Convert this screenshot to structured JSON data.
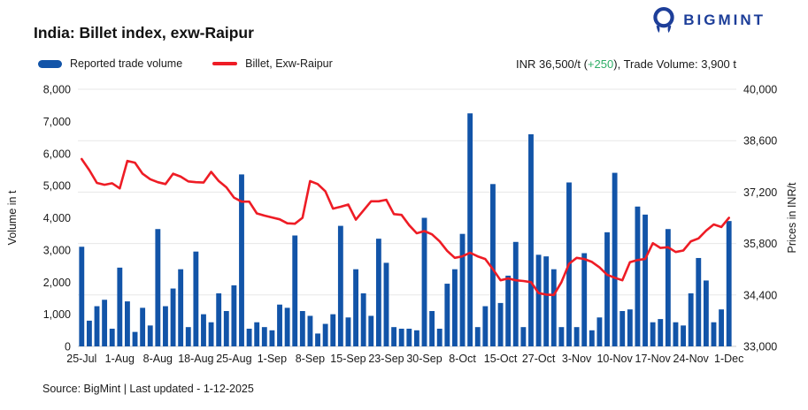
{
  "title": "India: Billet index, exw-Raipur",
  "logo": {
    "text": "BIGMINT",
    "color": "#1d3e99"
  },
  "legend": {
    "volume_label": "Reported trade volume",
    "price_label": "Billet, Exw-Raipur"
  },
  "summary": {
    "prefix": "INR 36,500/t (",
    "change": "+250",
    "suffix": "), Trade Volume: 3,900 t",
    "change_color": "#2eae66"
  },
  "source": "Source: BigMint | Last updated - 1-12-2025",
  "colors": {
    "bar": "#1254a8",
    "line": "#ee1c25",
    "grid": "#e7e7e7",
    "baseline": "#cccccc",
    "tick_text": "#1a1a1a"
  },
  "chart_data": {
    "type": "bar",
    "title": "India: Billet index, exw-Raipur",
    "grid": "horizontal gridlines aligned to right axis",
    "legend_position": "top-left",
    "x_tick_labels": [
      "25-Jul",
      "1-Aug",
      "8-Aug",
      "18-Aug",
      "25-Aug",
      "1-Sep",
      "8-Sep",
      "15-Sep",
      "23-Sep",
      "30-Sep",
      "8-Oct",
      "15-Oct",
      "27-Oct",
      "3-Nov",
      "10-Nov",
      "17-Nov",
      "24-Nov",
      "1-Dec"
    ],
    "x_tick_positions": [
      1,
      6,
      11,
      16,
      21,
      26,
      31,
      36,
      41,
      46,
      51,
      56,
      61,
      66,
      71,
      76,
      81,
      86
    ],
    "left_axis": {
      "title": "Volume in t",
      "min": 0,
      "max": 8000,
      "ticks": [
        "0",
        "1,000",
        "2,000",
        "3,000",
        "4,000",
        "5,000",
        "6,000",
        "7,000",
        "8,000"
      ]
    },
    "right_axis": {
      "title": "Prices in INR/t",
      "min": 33000,
      "max": 40000,
      "ticks": [
        "33,000",
        "34,400",
        "35,800",
        "37,200",
        "38,600",
        "40,000"
      ]
    },
    "series": [
      {
        "name": "Reported trade volume",
        "type": "bar",
        "axis": "left",
        "unit": "t",
        "values": [
          3100,
          800,
          1250,
          1450,
          550,
          2450,
          1400,
          450,
          1200,
          650,
          3650,
          1250,
          1800,
          2400,
          600,
          2950,
          1000,
          750,
          1650,
          1100,
          1900,
          5350,
          550,
          750,
          600,
          500,
          1300,
          1200,
          3450,
          1100,
          950,
          400,
          700,
          1000,
          3750,
          900,
          2400,
          1650,
          950,
          3350,
          2600,
          600,
          550,
          550,
          500,
          4000,
          1100,
          550,
          1950,
          2400,
          3500,
          7250,
          600,
          1250,
          5050,
          1350,
          2200,
          3250,
          600,
          6600,
          2850,
          2800,
          2400,
          600,
          5100,
          600,
          2900,
          500,
          900,
          3550,
          5400,
          1100,
          1150,
          4350,
          4100,
          750,
          850,
          3650,
          750,
          650,
          1650,
          2750,
          2050,
          750,
          1150,
          3900
        ]
      },
      {
        "name": "Billet, Exw-Raipur",
        "type": "line",
        "axis": "right",
        "unit": "INR/t",
        "values": [
          38100,
          37800,
          37450,
          37400,
          37440,
          37300,
          38050,
          38000,
          37700,
          37550,
          37470,
          37420,
          37700,
          37620,
          37490,
          37470,
          37460,
          37750,
          37500,
          37330,
          37050,
          36940,
          36940,
          36620,
          36560,
          36510,
          36460,
          36350,
          36340,
          36500,
          37500,
          37420,
          37220,
          36750,
          36800,
          36860,
          36450,
          36700,
          36950,
          36950,
          36990,
          36600,
          36580,
          36300,
          36080,
          36140,
          36050,
          35860,
          35600,
          35410,
          35450,
          35550,
          35450,
          35380,
          35100,
          34800,
          34850,
          34800,
          34780,
          34750,
          34450,
          34410,
          34400,
          34750,
          35250,
          35410,
          35380,
          35300,
          35150,
          34950,
          34870,
          34800,
          35290,
          35350,
          35380,
          35810,
          35680,
          35700,
          35570,
          35610,
          35860,
          35940,
          36150,
          36320,
          36250,
          36500
        ]
      }
    ],
    "last_price": "INR 36,500/t",
    "last_change": "+250",
    "last_volume": "3,900 t"
  }
}
